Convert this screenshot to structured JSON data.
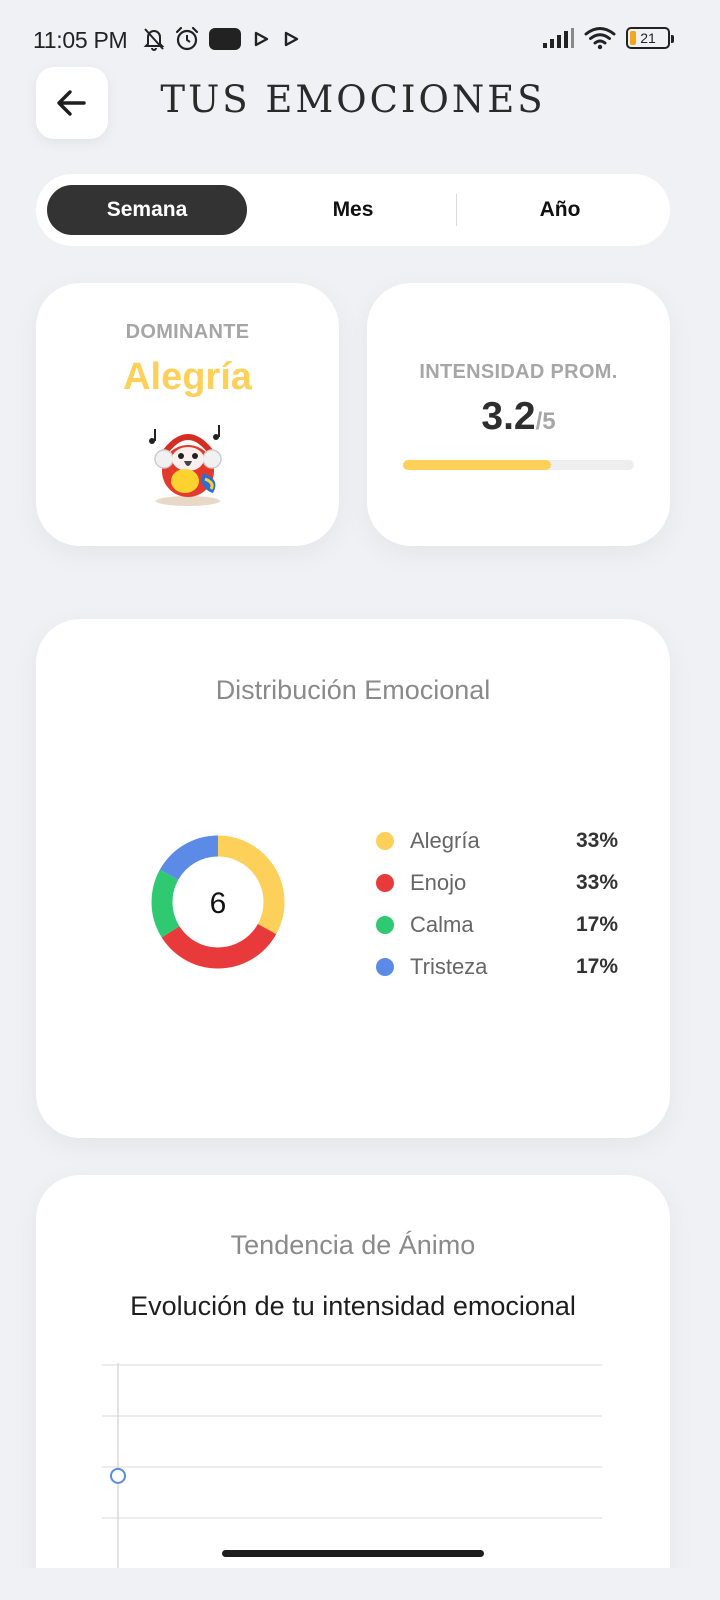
{
  "status_bar": {
    "time": "11:05 PM",
    "battery_level": "21",
    "icons_left": [
      "bell-off-icon",
      "alarm-icon",
      "notification-pill-icon",
      "play-icon",
      "play-icon"
    ],
    "icons_right": [
      "signal-icon",
      "wifi-icon",
      "battery-icon"
    ]
  },
  "header": {
    "back_icon": "arrow-left-icon",
    "title": "TUS EMOCIONES"
  },
  "period_tabs": {
    "selected": "Semana",
    "items": [
      {
        "label": "Semana"
      },
      {
        "label": "Mes"
      },
      {
        "label": "Año"
      }
    ]
  },
  "dominant_card": {
    "label": "DOMINANTE",
    "value": "Alegría",
    "mascot_icon": "parrot-mascot-icon"
  },
  "intensity_card": {
    "label": "INTENSIDAD PROM.",
    "value": "3.2",
    "max": "/5",
    "progress_fraction": 0.64
  },
  "distribution": {
    "title": "Distribución Emocional",
    "center_total": "6",
    "items": [
      {
        "name": "Alegría",
        "percent": "33%",
        "color": "#fdd05a"
      },
      {
        "name": "Enojo",
        "percent": "33%",
        "color": "#e83a3a"
      },
      {
        "name": "Calma",
        "percent": "17%",
        "color": "#2ec971"
      },
      {
        "name": "Tristeza",
        "percent": "17%",
        "color": "#5b8be6"
      }
    ]
  },
  "chart_data": [
    {
      "type": "pie",
      "labels": [
        "Alegría",
        "Enojo",
        "Calma",
        "Tristeza"
      ],
      "values": [
        33,
        33,
        17,
        17
      ],
      "colors": [
        "#fdd05a",
        "#e83a3a",
        "#2ec971",
        "#5b8be6"
      ],
      "title": "Distribución Emocional",
      "legend": "right"
    },
    {
      "type": "line",
      "title": "Tendencia de Ánimo",
      "subtitle": "Evolución de tu intensidad emocional",
      "x": [
        0
      ],
      "series": [
        {
          "values": [
            3.2
          ],
          "color": "#5b8be6"
        }
      ],
      "ylim": [
        0,
        5
      ],
      "grid": true
    }
  ],
  "trend": {
    "title": "Tendencia de Ánimo",
    "subtitle": "Evolución de tu intensidad emocional"
  }
}
